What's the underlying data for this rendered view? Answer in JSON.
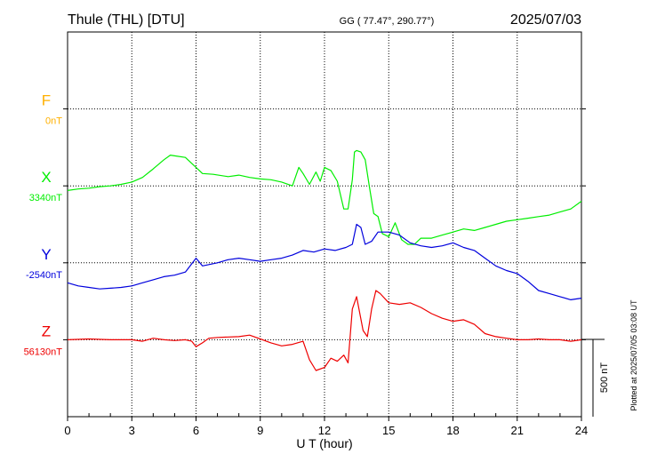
{
  "header": {
    "station": "Thule (THL)  [DTU]",
    "coords": "GG ( 77.47°, 290.77°)",
    "date": "2025/07/03"
  },
  "side_note": "Plotted at 2025/07/05 03:08 UT",
  "scale_bar_label": "500 nT",
  "colors": {
    "F": "#ffb000",
    "X": "#00ee00",
    "Y": "#0000dd",
    "Z": "#ee0000"
  },
  "chart_data": {
    "type": "line",
    "xlabel": "U T (hour)",
    "xlim": [
      0,
      24
    ],
    "xticks": [
      0,
      3,
      6,
      9,
      12,
      15,
      18,
      21,
      24
    ],
    "xtick_labels": [
      "0",
      "3",
      "6",
      "9",
      "12",
      "15",
      "18",
      "21",
      "24"
    ],
    "y_units_per_row": 500,
    "grid": true,
    "series": [
      {
        "name": "F",
        "baseline_label": "0nT",
        "row": 1,
        "x": [],
        "values": []
      },
      {
        "name": "X",
        "baseline_label": "3340nT",
        "row": 2,
        "x": [
          0,
          0.5,
          1,
          1.5,
          2,
          2.5,
          3,
          3.5,
          4,
          4.5,
          4.8,
          5,
          5.5,
          6,
          6.3,
          6.8,
          7.5,
          8,
          8.5,
          9,
          9.5,
          10,
          10.5,
          10.8,
          11,
          11.3,
          11.6,
          11.8,
          12,
          12.3,
          12.6,
          12.9,
          13.1,
          13.3,
          13.4,
          13.5,
          13.7,
          13.9,
          14.1,
          14.3,
          14.5,
          14.7,
          15,
          15.3,
          15.6,
          15.9,
          16.2,
          16.5,
          17,
          17.5,
          18,
          18.5,
          19,
          19.5,
          20,
          20.5,
          21,
          21.5,
          22,
          22.5,
          23,
          23.5,
          24
        ],
        "values": [
          -30,
          -20,
          -15,
          -5,
          0,
          10,
          25,
          55,
          110,
          170,
          200,
          195,
          185,
          120,
          80,
          75,
          60,
          70,
          55,
          45,
          40,
          25,
          0,
          120,
          80,
          10,
          90,
          30,
          120,
          100,
          30,
          -150,
          -150,
          40,
          220,
          230,
          220,
          170,
          -10,
          -180,
          -200,
          -310,
          -330,
          -240,
          -350,
          -380,
          -380,
          -340,
          -340,
          -320,
          -300,
          -280,
          -290,
          -270,
          -250,
          -230,
          -220,
          -210,
          -200,
          -190,
          -170,
          -150,
          -100
        ]
      },
      {
        "name": "Y",
        "baseline_label": "-2540nT",
        "row": 3,
        "x": [
          0,
          0.5,
          1,
          1.5,
          2,
          2.5,
          3,
          3.5,
          4,
          4.5,
          5,
          5.5,
          6,
          6.3,
          7,
          7.5,
          8,
          8.5,
          9,
          9.5,
          10,
          10.5,
          11,
          11.5,
          12,
          12.5,
          13,
          13.3,
          13.5,
          13.7,
          13.9,
          14.2,
          14.5,
          15,
          15.5,
          16,
          16.5,
          17,
          17.5,
          18,
          18.5,
          19,
          19.5,
          20,
          20.5,
          21,
          21.5,
          22,
          22.5,
          23,
          23.5,
          24
        ],
        "values": [
          -130,
          -150,
          -160,
          -170,
          -165,
          -160,
          -150,
          -130,
          -110,
          -90,
          -80,
          -60,
          30,
          -20,
          0,
          20,
          30,
          20,
          10,
          20,
          30,
          50,
          80,
          70,
          90,
          80,
          100,
          120,
          250,
          230,
          120,
          140,
          200,
          200,
          180,
          130,
          110,
          100,
          110,
          130,
          100,
          80,
          30,
          -20,
          -50,
          -70,
          -120,
          -180,
          -200,
          -220,
          -240,
          -230
        ]
      },
      {
        "name": "Z",
        "baseline_label": "56130nT",
        "row": 4,
        "x": [
          0,
          1,
          2,
          3,
          3.5,
          4,
          4.5,
          5,
          5.5,
          5.8,
          6,
          6.3,
          6.6,
          7,
          8,
          8.5,
          9,
          9.5,
          10,
          10.5,
          11,
          11.3,
          11.6,
          12,
          12.3,
          12.6,
          12.9,
          13.1,
          13.3,
          13.5,
          13.8,
          14,
          14.2,
          14.4,
          14.6,
          15,
          15.5,
          16,
          16.5,
          17,
          17.5,
          18,
          18.5,
          19,
          19.5,
          20,
          20.5,
          21,
          21.5,
          22,
          22.5,
          23,
          23.5,
          24
        ],
        "values": [
          0,
          5,
          0,
          0,
          -10,
          10,
          0,
          -5,
          0,
          -10,
          -45,
          -20,
          10,
          15,
          20,
          30,
          5,
          -20,
          -40,
          -30,
          -10,
          -130,
          -200,
          -180,
          -120,
          -140,
          -100,
          -150,
          200,
          280,
          60,
          20,
          200,
          320,
          300,
          240,
          230,
          240,
          210,
          170,
          140,
          120,
          130,
          100,
          40,
          20,
          10,
          0,
          0,
          5,
          0,
          0,
          -10,
          0
        ]
      }
    ]
  }
}
